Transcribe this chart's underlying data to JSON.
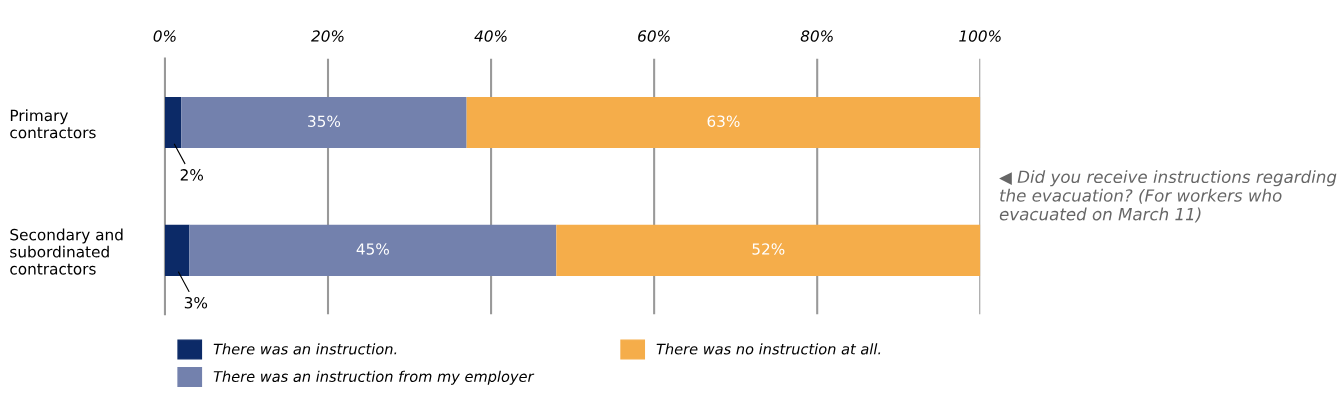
{
  "chart_data": {
    "type": "bar",
    "orientation": "horizontal",
    "stacked": true,
    "categories": [
      "Primary\ncontractors",
      "Secondary and\nsubordinated\ncontractors"
    ],
    "series": [
      {
        "name": "There was an instruction.",
        "color": "#0c2a67",
        "values": [
          2,
          3
        ],
        "value_labels": [
          "2%",
          "3%"
        ]
      },
      {
        "name": "There was an instruction from my employer",
        "color": "#7381ad",
        "values": [
          35,
          45
        ],
        "value_labels": [
          "35%",
          "45%"
        ]
      },
      {
        "name": "There was no instruction at all.",
        "color": "#f5ad4a",
        "values": [
          63,
          52
        ],
        "value_labels": [
          "63%",
          "52%"
        ]
      }
    ],
    "xlim": [
      0,
      100
    ],
    "xticks": [
      {
        "value": 0,
        "label": "0%"
      },
      {
        "value": 20,
        "label": "20%"
      },
      {
        "value": 40,
        "label": "40%"
      },
      {
        "value": 60,
        "label": "60%"
      },
      {
        "value": 80,
        "label": "80%"
      },
      {
        "value": 100,
        "label": "100%"
      }
    ],
    "grid": "x",
    "legend": "bottom",
    "annotations": [
      "◀ Did you receive instructions regarding the evacuation? (For workers who evacuated on March 11)"
    ]
  }
}
